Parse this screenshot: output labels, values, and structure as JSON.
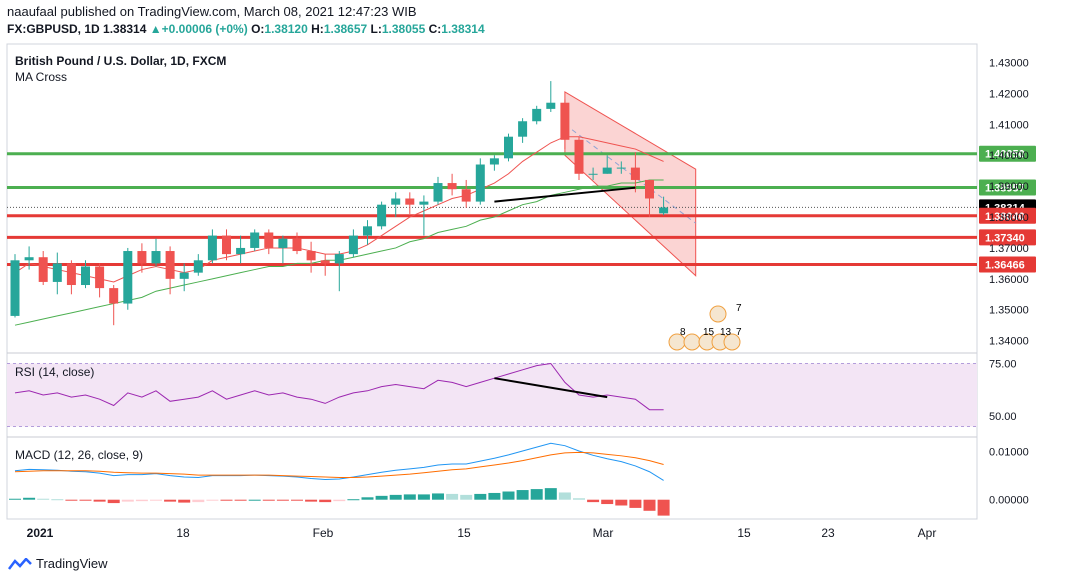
{
  "header": {
    "line1": "naaufaal published on TradingView.com, March 08, 2021 12:47:23 WIB",
    "symbol": "FX:GBPUSD, 1D",
    "last": "1.38314",
    "change": "+0.00006 (+0%)",
    "o_label": "O:",
    "o": "1.38120",
    "h_label": "H:",
    "h": "1.38657",
    "l_label": "L:",
    "l": "1.38055",
    "c_label": "C:",
    "c": "1.38314"
  },
  "footer": {
    "brand": "TradingView"
  },
  "colors": {
    "up": "#26a69a",
    "down": "#ef5350",
    "green_level": "#4caf50",
    "red_level": "#e53935",
    "ma_fast": "#ef5350",
    "ma_slow": "#4caf50",
    "rsi": "#9c27b0",
    "macd": "#2196f3",
    "signal": "#ff6d00"
  },
  "chart_data": [
    {
      "type": "candlestick",
      "title": "British Pound / U.S. Dollar, 1D, FXCM",
      "subtitle": "MA Cross",
      "ylim": [
        1.336,
        1.436
      ],
      "y_ticks": [
        "1.43000",
        "1.42000",
        "1.41000",
        "1.40000",
        "1.39000",
        "1.38000",
        "1.37000",
        "1.36000",
        "1.35000",
        "1.34000"
      ],
      "x_ticks": [
        "2021",
        "18",
        "Feb",
        "15",
        "Mar",
        "15",
        "23",
        "Apr"
      ],
      "candles": [
        [
          1.348,
          1.368,
          1.3475,
          1.366
        ],
        [
          1.366,
          1.3705,
          1.363,
          1.367
        ],
        [
          1.367,
          1.369,
          1.358,
          1.359
        ],
        [
          1.359,
          1.3685,
          1.355,
          1.365
        ],
        [
          1.365,
          1.366,
          1.355,
          1.358
        ],
        [
          1.358,
          1.366,
          1.357,
          1.364
        ],
        [
          1.364,
          1.365,
          1.354,
          1.357
        ],
        [
          1.357,
          1.358,
          1.345,
          1.352
        ],
        [
          1.352,
          1.37,
          1.35,
          1.369
        ],
        [
          1.369,
          1.3715,
          1.362,
          1.365
        ],
        [
          1.365,
          1.373,
          1.364,
          1.369
        ],
        [
          1.369,
          1.3705,
          1.355,
          1.36
        ],
        [
          1.36,
          1.365,
          1.356,
          1.362
        ],
        [
          1.362,
          1.368,
          1.361,
          1.366
        ],
        [
          1.366,
          1.376,
          1.365,
          1.374
        ],
        [
          1.374,
          1.376,
          1.366,
          1.368
        ],
        [
          1.368,
          1.374,
          1.365,
          1.37
        ],
        [
          1.37,
          1.376,
          1.369,
          1.375
        ],
        [
          1.375,
          1.376,
          1.368,
          1.37
        ],
        [
          1.37,
          1.374,
          1.365,
          1.373
        ],
        [
          1.373,
          1.375,
          1.368,
          1.369
        ],
        [
          1.369,
          1.372,
          1.362,
          1.366
        ],
        [
          1.366,
          1.368,
          1.361,
          1.365
        ],
        [
          1.365,
          1.369,
          1.356,
          1.368
        ],
        [
          1.368,
          1.376,
          1.367,
          1.374
        ],
        [
          1.374,
          1.379,
          1.371,
          1.377
        ],
        [
          1.377,
          1.385,
          1.376,
          1.384
        ],
        [
          1.384,
          1.388,
          1.38,
          1.386
        ],
        [
          1.386,
          1.388,
          1.381,
          1.384
        ],
        [
          1.384,
          1.387,
          1.374,
          1.385
        ],
        [
          1.385,
          1.393,
          1.384,
          1.391
        ],
        [
          1.391,
          1.394,
          1.387,
          1.389
        ],
        [
          1.389,
          1.392,
          1.383,
          1.385
        ],
        [
          1.385,
          1.399,
          1.384,
          1.397
        ],
        [
          1.397,
          1.4,
          1.395,
          1.399
        ],
        [
          1.399,
          1.407,
          1.398,
          1.406
        ],
        [
          1.406,
          1.412,
          1.404,
          1.411
        ],
        [
          1.411,
          1.416,
          1.41,
          1.415
        ],
        [
          1.415,
          1.424,
          1.414,
          1.417
        ],
        [
          1.417,
          1.418,
          1.402,
          1.405
        ],
        [
          1.405,
          1.406,
          1.392,
          1.394
        ],
        [
          1.394,
          1.396,
          1.392,
          1.394
        ],
        [
          1.394,
          1.4,
          1.394,
          1.396
        ],
        [
          1.396,
          1.398,
          1.394,
          1.396
        ],
        [
          1.396,
          1.401,
          1.388,
          1.392
        ],
        [
          1.392,
          1.392,
          1.38,
          1.386
        ],
        [
          1.3812,
          1.3866,
          1.3806,
          1.3831
        ]
      ],
      "ma_fast": [
        1.362,
        1.365,
        1.364,
        1.363,
        1.362,
        1.361,
        1.36,
        1.359,
        1.361,
        1.363,
        1.364,
        1.363,
        1.362,
        1.363,
        1.366,
        1.367,
        1.368,
        1.369,
        1.37,
        1.37,
        1.37,
        1.369,
        1.368,
        1.368,
        1.369,
        1.371,
        1.374,
        1.377,
        1.38,
        1.382,
        1.384,
        1.386,
        1.387,
        1.389,
        1.391,
        1.394,
        1.398,
        1.401,
        1.404,
        1.406,
        1.406,
        1.405,
        1.404,
        1.403,
        1.402,
        1.4,
        1.398
      ],
      "ma_slow": [
        1.345,
        1.346,
        1.347,
        1.348,
        1.349,
        1.35,
        1.351,
        1.352,
        1.353,
        1.354,
        1.356,
        1.357,
        1.358,
        1.359,
        1.36,
        1.361,
        1.362,
        1.363,
        1.364,
        1.364,
        1.365,
        1.365,
        1.366,
        1.366,
        1.367,
        1.368,
        1.369,
        1.37,
        1.372,
        1.373,
        1.375,
        1.376,
        1.377,
        1.379,
        1.38,
        1.382,
        1.384,
        1.385,
        1.387,
        1.388,
        1.389,
        1.39,
        1.39,
        1.391,
        1.391,
        1.392,
        1.392
      ],
      "levels": [
        {
          "value": 1.4005,
          "label": "1.40050",
          "kind": "green"
        },
        {
          "value": 1.38957,
          "label": "1.38957",
          "kind": "green"
        },
        {
          "value": 1.38314,
          "label": "1.38314",
          "kind": "price"
        },
        {
          "value": 1.3804,
          "label": "1.38040",
          "kind": "red"
        },
        {
          "value": 1.3734,
          "label": "1.37340",
          "kind": "red"
        },
        {
          "value": 1.36466,
          "label": "1.36466",
          "kind": "red"
        }
      ],
      "event_counts": [
        "8",
        "15",
        "13",
        "7",
        "7"
      ]
    },
    {
      "type": "line",
      "title": "RSI (14, close)",
      "ylim": [
        40,
        80
      ],
      "y_ticks": [
        "75.00",
        "50.00"
      ],
      "values": [
        61,
        62,
        60,
        61,
        59,
        60,
        58,
        55,
        61,
        59,
        62,
        57,
        58,
        59,
        62,
        58,
        60,
        62,
        60,
        61,
        59,
        58,
        56,
        59,
        61,
        62,
        64,
        65,
        64,
        63,
        67,
        66,
        64,
        66,
        68,
        70,
        72,
        74,
        75,
        66,
        60,
        59,
        60,
        59,
        58,
        53,
        53
      ]
    },
    {
      "type": "line",
      "title": "MACD (12, 26, close, 9)",
      "ylim": [
        -0.004,
        0.013
      ],
      "y_ticks": [
        "0.01000",
        "0.00000"
      ],
      "macd": [
        0.006,
        0.0063,
        0.0062,
        0.0061,
        0.0059,
        0.0058,
        0.0055,
        0.005,
        0.0052,
        0.0052,
        0.0054,
        0.005,
        0.0047,
        0.0046,
        0.005,
        0.005,
        0.005,
        0.0051,
        0.005,
        0.0049,
        0.0047,
        0.0044,
        0.0042,
        0.0043,
        0.0047,
        0.0052,
        0.0057,
        0.0061,
        0.0064,
        0.0067,
        0.0072,
        0.0074,
        0.0074,
        0.008,
        0.0086,
        0.0093,
        0.0101,
        0.0109,
        0.0117,
        0.0112,
        0.0101,
        0.0092,
        0.0085,
        0.0079,
        0.007,
        0.0058,
        0.004
      ],
      "signal": [
        0.0058,
        0.0059,
        0.006,
        0.006,
        0.006,
        0.006,
        0.0059,
        0.0057,
        0.0056,
        0.0055,
        0.0055,
        0.0054,
        0.0053,
        0.0051,
        0.0051,
        0.0051,
        0.0051,
        0.0051,
        0.0051,
        0.005,
        0.0049,
        0.0048,
        0.0047,
        0.0046,
        0.0046,
        0.0047,
        0.0049,
        0.0051,
        0.0053,
        0.0056,
        0.0059,
        0.0062,
        0.0064,
        0.0068,
        0.0072,
        0.0076,
        0.0081,
        0.0087,
        0.0093,
        0.0097,
        0.0098,
        0.0097,
        0.0094,
        0.0091,
        0.0087,
        0.0081,
        0.0073
      ]
    }
  ]
}
